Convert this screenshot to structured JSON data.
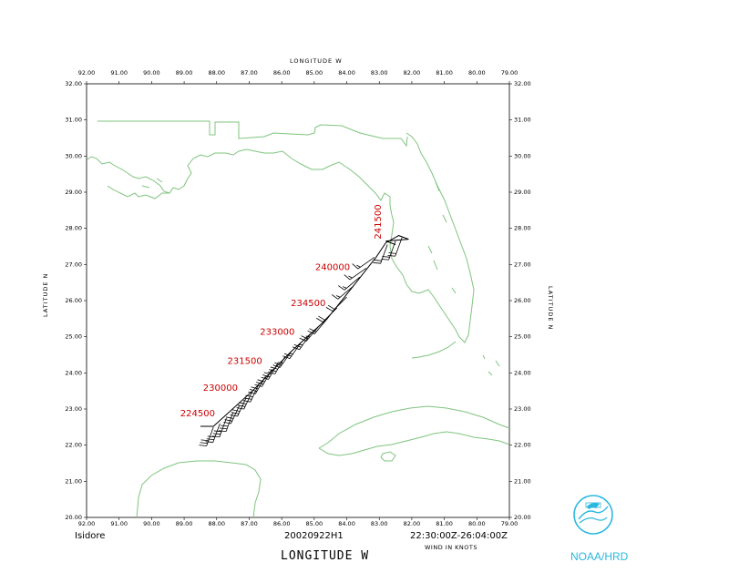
{
  "title_top": "LONGITUDE   W",
  "x_axis_label": "LONGITUDE   W",
  "y_axis_label_left": "LATITUDE   N",
  "y_axis_label_right": "LATITUDE   N",
  "storm_name": "Isidore",
  "flight_id": "20020922H1",
  "time_range": "22:30:00Z-26:04:00Z",
  "wind_units": "WIND IN KNOTS",
  "agency": "NOAA/HRD",
  "map_extent": {
    "lon_west": 92.0,
    "lon_east": 79.0,
    "lat_south": 20.0,
    "lat_north": 32.0
  },
  "lon_ticks": [
    "92.00",
    "91.00",
    "90.00",
    "89.00",
    "88.00",
    "87.00",
    "86.00",
    "85.00",
    "84.00",
    "83.00",
    "82.00",
    "81.00",
    "80.00",
    "79.00"
  ],
  "lat_ticks": [
    "20.00",
    "21.00",
    "22.00",
    "23.00",
    "24.00",
    "25.00",
    "26.00",
    "27.00",
    "28.00",
    "29.00",
    "30.00",
    "31.00",
    "32.00"
  ],
  "colors": {
    "coastline": "#7fc47f",
    "track": "#000000",
    "time_labels": "#cc0000",
    "agency": "#2ab8e0"
  },
  "track_points": [
    {
      "lon": 88.5,
      "lat": 22.52
    },
    {
      "lon": 88.1,
      "lat": 22.52
    },
    {
      "lon": 86.9,
      "lat": 23.5
    },
    {
      "lon": 85.7,
      "lat": 24.6
    },
    {
      "lon": 84.6,
      "lat": 25.5
    },
    {
      "lon": 83.8,
      "lat": 26.4
    },
    {
      "lon": 83.1,
      "lat": 27.2
    },
    {
      "lon": 82.8,
      "lat": 27.6
    },
    {
      "lon": 82.4,
      "lat": 27.8
    },
    {
      "lon": 82.1,
      "lat": 27.7
    },
    {
      "lon": 82.8,
      "lat": 27.65
    },
    {
      "lon": 82.5,
      "lat": 27.55
    }
  ],
  "time_labels": [
    {
      "text": "224500",
      "lon": 88.05,
      "lat": 22.8,
      "rotate": 0
    },
    {
      "text": "230000",
      "lon": 87.35,
      "lat": 23.5,
      "rotate": 0
    },
    {
      "text": "231500",
      "lon": 86.6,
      "lat": 24.25,
      "rotate": 0
    },
    {
      "text": "233000",
      "lon": 85.6,
      "lat": 25.05,
      "rotate": 0
    },
    {
      "text": "234500",
      "lon": 84.65,
      "lat": 25.85,
      "rotate": 0
    },
    {
      "text": "240000",
      "lon": 83.9,
      "lat": 26.85,
      "rotate": 0
    },
    {
      "text": "241500",
      "lon": 82.95,
      "lat": 27.7,
      "rotate": -90
    }
  ],
  "wind_barbs": [
    {
      "lon": 88.1,
      "lat": 22.5,
      "dir": 200,
      "speed": 30
    },
    {
      "lon": 87.9,
      "lat": 22.6,
      "dir": 200,
      "speed": 30
    },
    {
      "lon": 87.7,
      "lat": 22.75,
      "dir": 200,
      "speed": 30
    },
    {
      "lon": 87.5,
      "lat": 22.9,
      "dir": 200,
      "speed": 30
    },
    {
      "lon": 87.3,
      "lat": 23.1,
      "dir": 205,
      "speed": 30
    },
    {
      "lon": 87.1,
      "lat": 23.3,
      "dir": 205,
      "speed": 30
    },
    {
      "lon": 86.9,
      "lat": 23.5,
      "dir": 205,
      "speed": 30
    },
    {
      "lon": 86.7,
      "lat": 23.7,
      "dir": 205,
      "speed": 30
    },
    {
      "lon": 86.5,
      "lat": 23.9,
      "dir": 210,
      "speed": 30
    },
    {
      "lon": 86.3,
      "lat": 24.1,
      "dir": 210,
      "speed": 30
    },
    {
      "lon": 86.1,
      "lat": 24.3,
      "dir": 210,
      "speed": 30
    },
    {
      "lon": 85.9,
      "lat": 24.45,
      "dir": 210,
      "speed": 30
    },
    {
      "lon": 85.7,
      "lat": 24.6,
      "dir": 215,
      "speed": 25
    },
    {
      "lon": 85.4,
      "lat": 24.85,
      "dir": 215,
      "speed": 25
    },
    {
      "lon": 85.1,
      "lat": 25.1,
      "dir": 215,
      "speed": 25
    },
    {
      "lon": 84.85,
      "lat": 25.3,
      "dir": 220,
      "speed": 25
    },
    {
      "lon": 84.6,
      "lat": 25.5,
      "dir": 220,
      "speed": 20
    },
    {
      "lon": 84.3,
      "lat": 25.8,
      "dir": 225,
      "speed": 20
    },
    {
      "lon": 84.0,
      "lat": 26.1,
      "dir": 225,
      "speed": 20
    },
    {
      "lon": 83.8,
      "lat": 26.4,
      "dir": 230,
      "speed": 15
    },
    {
      "lon": 83.6,
      "lat": 26.65,
      "dir": 230,
      "speed": 15
    },
    {
      "lon": 83.4,
      "lat": 26.9,
      "dir": 235,
      "speed": 15
    },
    {
      "lon": 83.15,
      "lat": 27.2,
      "dir": 235,
      "speed": 15
    },
    {
      "lon": 82.75,
      "lat": 27.55,
      "dir": 200,
      "speed": 20
    },
    {
      "lon": 82.5,
      "lat": 27.65,
      "dir": 200,
      "speed": 20
    },
    {
      "lon": 82.3,
      "lat": 27.75,
      "dir": 200,
      "speed": 20
    }
  ]
}
